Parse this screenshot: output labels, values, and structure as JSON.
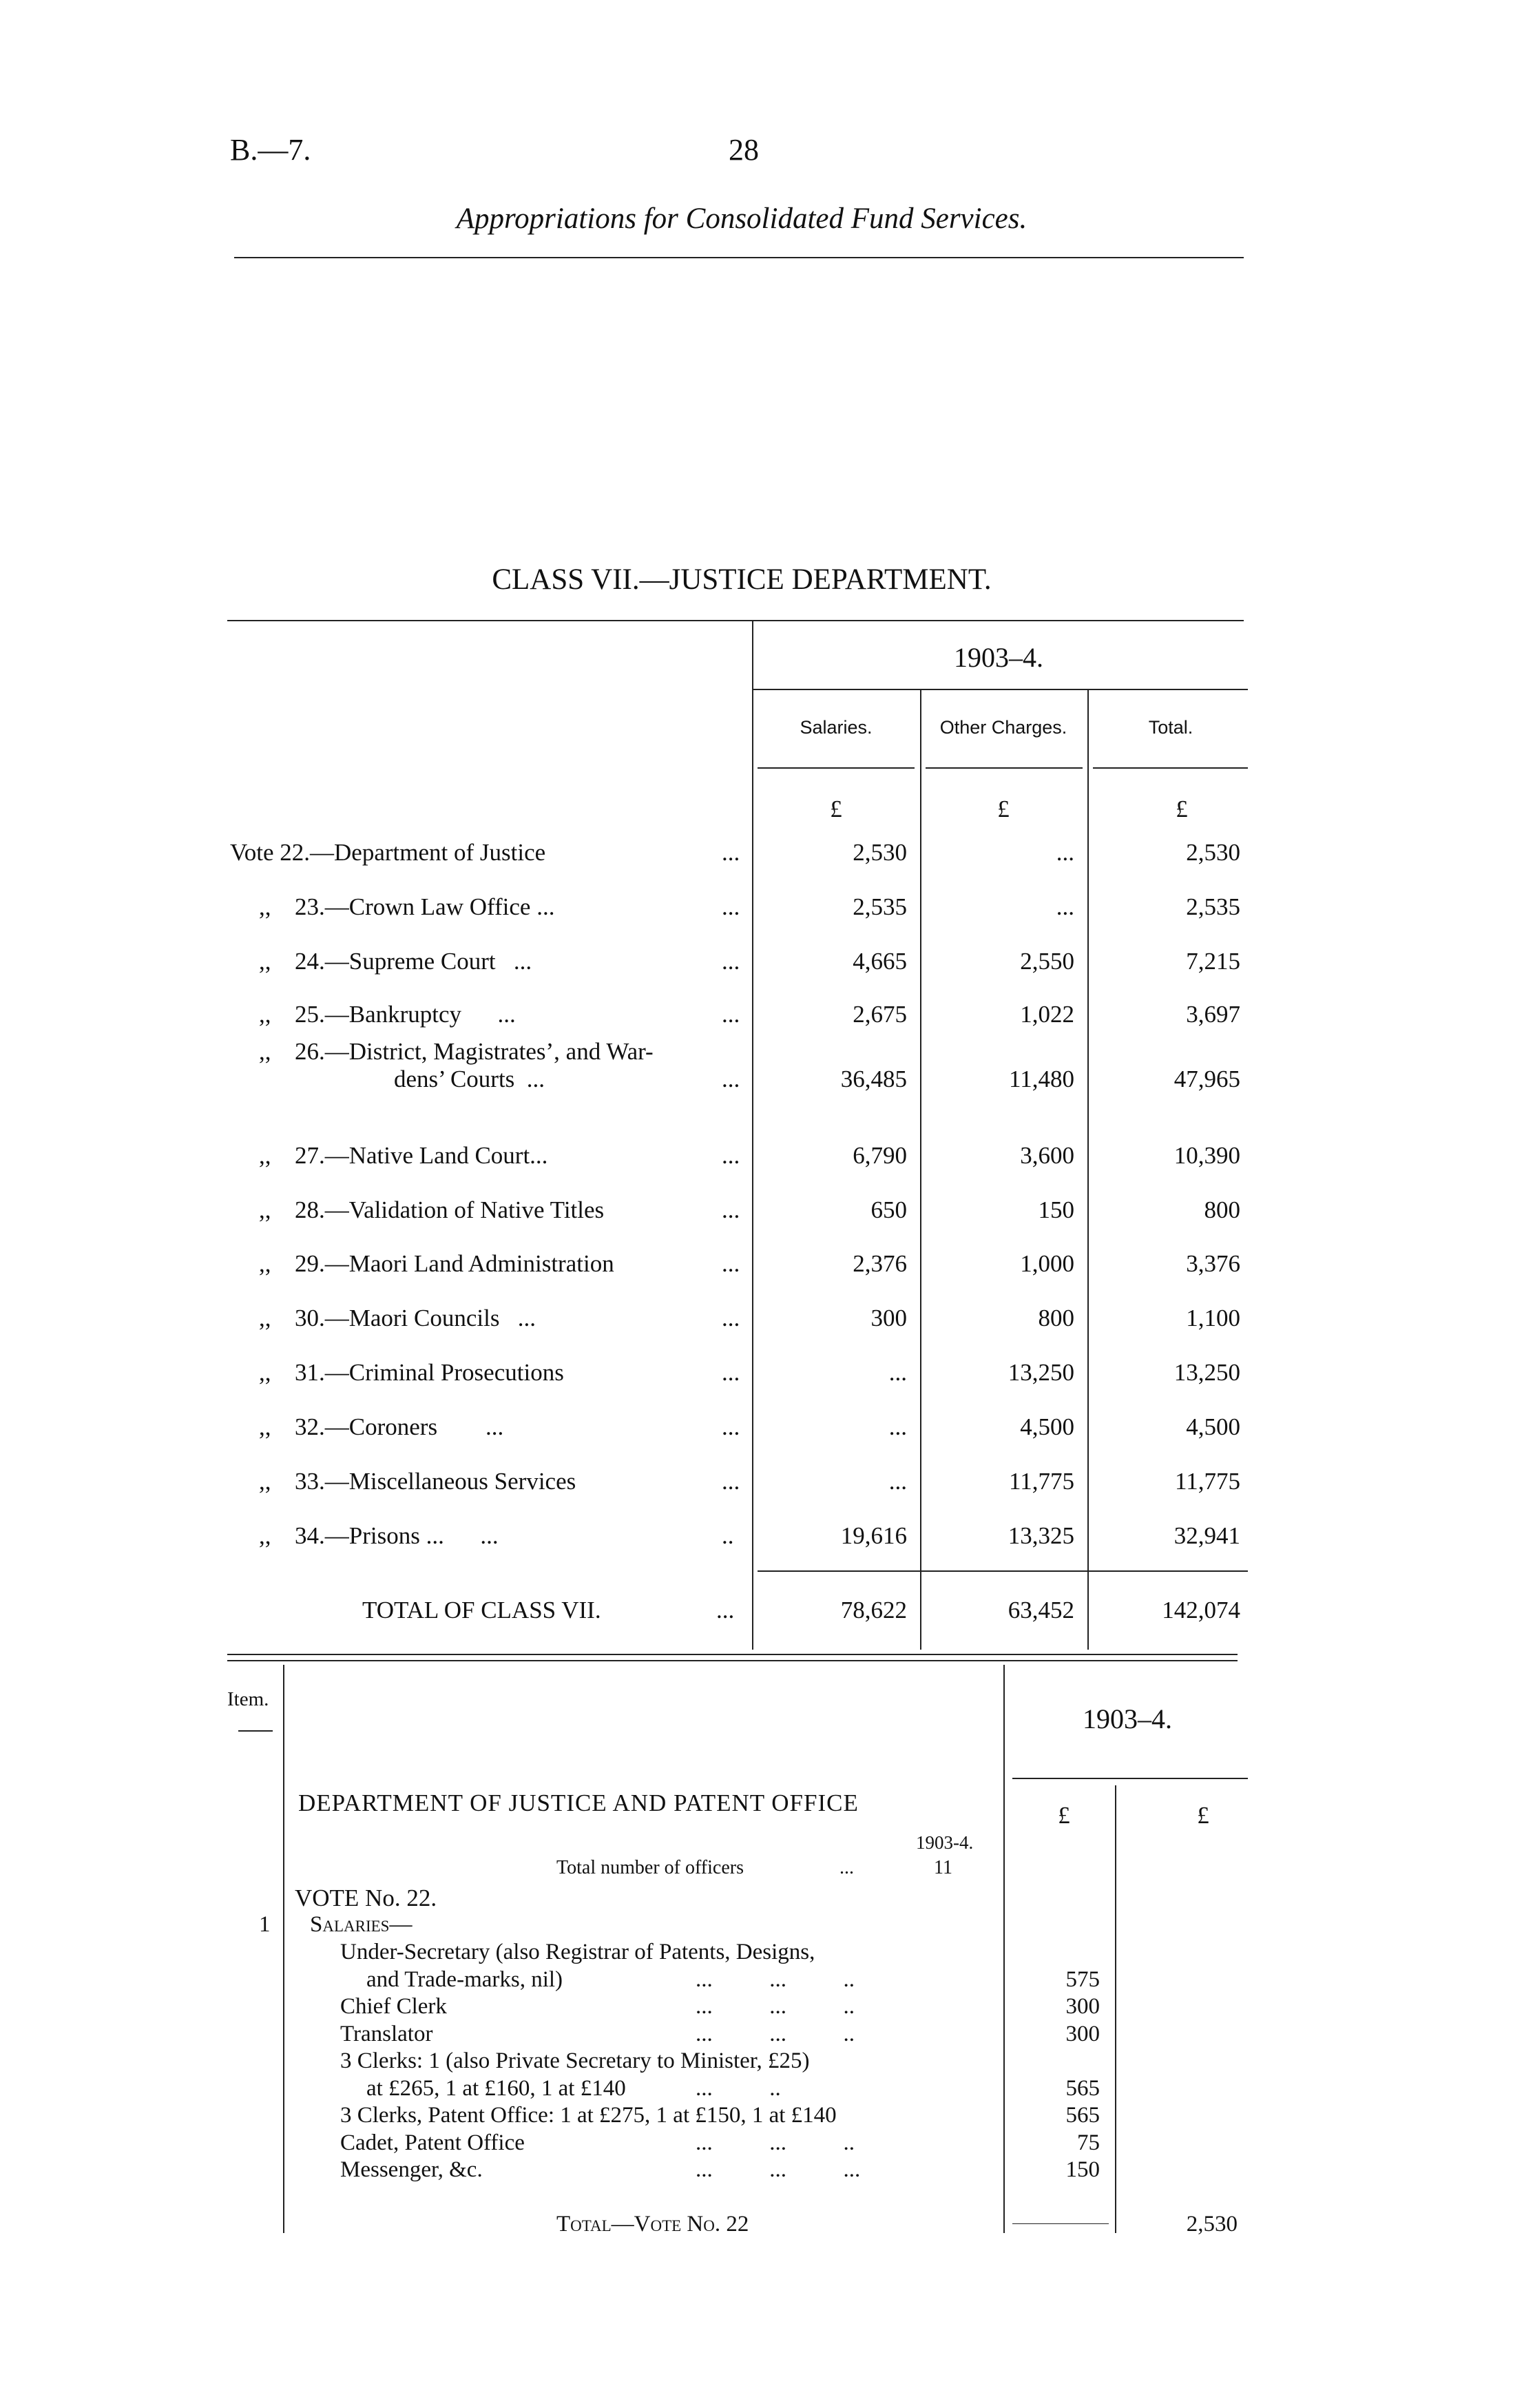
{
  "header": {
    "series_code": "B.—7.",
    "page_number": "28",
    "title": "Appropriations for Consolidated Fund Services."
  },
  "class_table": {
    "heading": "CLASS VII.—JUSTICE DEPARTMENT.",
    "year": "1903–4.",
    "columns": [
      "Salaries.",
      "Other Charges.",
      "Total."
    ],
    "currency": [
      "£",
      "£",
      "£"
    ],
    "rows": [
      {
        "prefix": "Vote 22.",
        "label": "—Department of Justice",
        "dots": "...",
        "salaries": "2,530",
        "other": "...",
        "total": "2,530"
      },
      {
        "prefix": ",,",
        "label": "23.—Crown Law Office ...",
        "dots": "...",
        "salaries": "2,535",
        "other": "...",
        "total": "2,535"
      },
      {
        "prefix": ",,",
        "label": "24.—Supreme Court   ...",
        "dots": "...",
        "salaries": "4,665",
        "other": "2,550",
        "total": "7,215"
      },
      {
        "prefix": ",,",
        "label": "25.—Bankruptcy      ...",
        "dots": "...",
        "salaries": "2,675",
        "other": "1,022",
        "total": "3,697"
      },
      {
        "prefix": ",,",
        "label": "26.—District, Magistrates’, and War-",
        "label2": "dens’ Courts  ...",
        "dots": "...",
        "salaries": "36,485",
        "other": "11,480",
        "total": "47,965"
      },
      {
        "prefix": ",,",
        "label": "27.—Native Land Court...",
        "dots": "...",
        "salaries": "6,790",
        "other": "3,600",
        "total": "10,390"
      },
      {
        "prefix": ",,",
        "label": "28.—Validation of Native Titles",
        "dots": "...",
        "salaries": "650",
        "other": "150",
        "total": "800"
      },
      {
        "prefix": ",,",
        "label": "29.—Maori Land Administration",
        "dots": "...",
        "salaries": "2,376",
        "other": "1,000",
        "total": "3,376"
      },
      {
        "prefix": ",,",
        "label": "30.—Maori Councils   ...",
        "dots": "...",
        "salaries": "300",
        "other": "800",
        "total": "1,100"
      },
      {
        "prefix": ",,",
        "label": "31.—Criminal Prosecutions",
        "dots": "...",
        "salaries": "...",
        "other": "13,250",
        "total": "13,250"
      },
      {
        "prefix": ",,",
        "label": "32.—Coroners        ...",
        "dots": "...",
        "salaries": "...",
        "other": "4,500",
        "total": "4,500"
      },
      {
        "prefix": ",,",
        "label": "33.—Miscellaneous Services",
        "dots": "...",
        "salaries": "...",
        "other": "11,775",
        "total": "11,775"
      },
      {
        "prefix": ",,",
        "label": "34.—Prisons ...      ...",
        "dots": "..",
        "salaries": "19,616",
        "other": "13,325",
        "total": "32,941"
      }
    ],
    "total_row": {
      "label": "TOTAL OF CLASS VII.",
      "dots": "...",
      "salaries": "78,622",
      "other": "63,452",
      "total": "142,074"
    }
  },
  "vote_table": {
    "item_header": "Item.",
    "year": "1903–4.",
    "currency": [
      "£",
      "£"
    ],
    "department": "DEPARTMENT OF JUSTICE AND PATENT OFFICE",
    "officers_year": "1903-4.",
    "officers_label": "Total number of officers",
    "officers_dots": "...",
    "officers_count": "11",
    "vote_heading": "VOTE No. 22.",
    "item_number": "1",
    "salaries_heading": "Salaries—",
    "lines": [
      {
        "text": "Under-Secretary (also Registrar of Patents, Designs,",
        "indent": 0,
        "amount": ""
      },
      {
        "text": "and Trade-marks, nil)",
        "indent": 1,
        "dots": "...          ...          ..",
        "amount": "575"
      },
      {
        "text": "Chief Clerk",
        "indent": 0,
        "dots": "...          ...          ..",
        "amount": "300"
      },
      {
        "text": "Translator",
        "indent": 0,
        "dots": "...          ...          ..",
        "amount": "300"
      },
      {
        "text": "3 Clerks: 1 (also Private Secretary to Minister, £25)",
        "indent": 0,
        "amount": ""
      },
      {
        "text": "at £265, 1 at £160, 1 at £140",
        "indent": 1,
        "dots": "...          ..",
        "amount": "565"
      },
      {
        "text": "3 Clerks, Patent Office: 1 at £275, 1 at £150, 1 at £140",
        "indent": 0,
        "amount": "565"
      },
      {
        "text": "Cadet, Patent Office",
        "indent": 0,
        "dots": "...          ...          ..",
        "amount": "75"
      },
      {
        "text": "Messenger, &c.",
        "indent": 0,
        "dots": "...          ...          ...",
        "amount": "150"
      }
    ],
    "total_label": "Total—Vote No. 22",
    "total_amount": "2,530"
  }
}
